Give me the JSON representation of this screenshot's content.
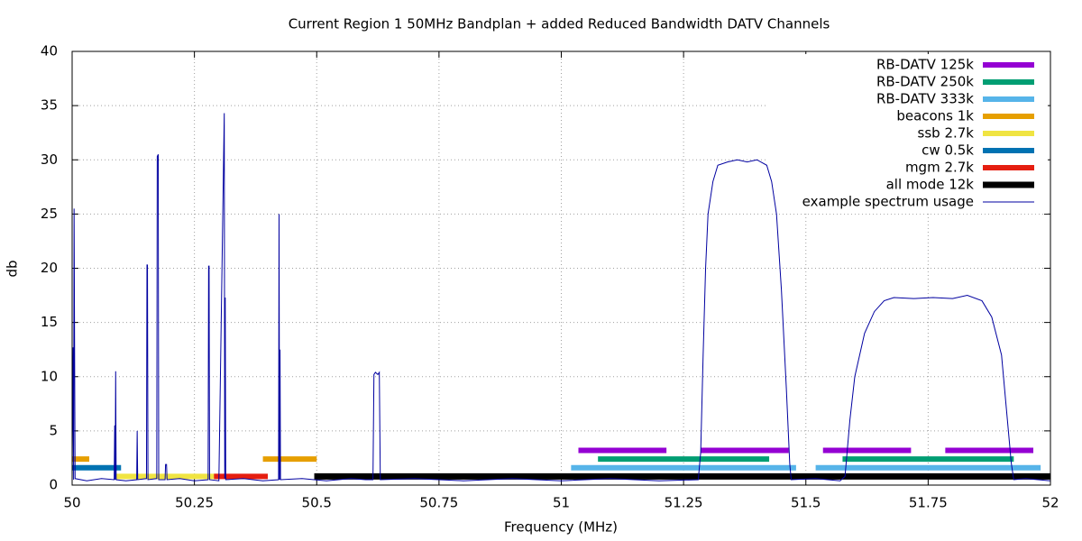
{
  "chart_data": {
    "type": "line",
    "title": "Current Region 1 50MHz Bandplan + added Reduced Bandwidth DATV Channels",
    "x_label": "Frequency (MHz)",
    "y_label": "db",
    "xlim": [
      50,
      52
    ],
    "ylim": [
      0,
      40
    ],
    "xticks": [
      50,
      50.25,
      50.5,
      50.75,
      51,
      51.25,
      51.5,
      51.75,
      52
    ],
    "yticks": [
      0,
      5,
      10,
      15,
      20,
      25,
      30,
      35,
      40
    ],
    "grid": true,
    "legend": "top-right",
    "series": [
      {
        "name": "RB-DATV 125k",
        "type": "segments",
        "color": "#9400d3",
        "y": 3.2,
        "segments": [
          [
            51.035,
            51.215
          ],
          [
            51.285,
            51.465
          ],
          [
            51.535,
            51.715
          ],
          [
            51.785,
            51.965
          ]
        ]
      },
      {
        "name": "RB-DATV 250k",
        "type": "segments",
        "color": "#009e73",
        "y": 2.4,
        "segments": [
          [
            51.075,
            51.425
          ],
          [
            51.575,
            51.925
          ]
        ]
      },
      {
        "name": "RB-DATV 333k",
        "type": "segments",
        "color": "#56b4e9",
        "y": 1.6,
        "segments": [
          [
            51.02,
            51.48
          ],
          [
            51.52,
            51.98
          ]
        ]
      },
      {
        "name": "beacons 1k",
        "type": "segments",
        "color": "#e69f00",
        "y": 2.4,
        "segments": [
          [
            50.0,
            50.035
          ],
          [
            50.39,
            50.5
          ]
        ]
      },
      {
        "name": "ssb 2.7k",
        "type": "segments",
        "color": "#f0e442",
        "y": 0.8,
        "segments": [
          [
            50.09,
            50.3
          ]
        ]
      },
      {
        "name": "cw 0.5k",
        "type": "segments",
        "color": "#0072b2",
        "y": 1.6,
        "segments": [
          [
            50.0,
            50.1
          ]
        ]
      },
      {
        "name": "mgm 2.7k",
        "type": "segments",
        "color": "#e51e10",
        "y": 0.8,
        "segments": [
          [
            50.29,
            50.4
          ]
        ]
      },
      {
        "name": "all mode 12k",
        "type": "segments",
        "color": "#000000",
        "y": 0.8,
        "segments": [
          [
            50.495,
            52.0
          ]
        ]
      },
      {
        "name": "example spectrum usage",
        "type": "line",
        "color": "#0000a0",
        "x": [
          50.0,
          50.002,
          50.003,
          50.004,
          50.006,
          50.03,
          50.06,
          50.086,
          50.087,
          50.088,
          50.089,
          50.09,
          50.11,
          50.132,
          50.133,
          50.134,
          50.152,
          50.153,
          50.154,
          50.155,
          50.173,
          50.174,
          50.176,
          50.177,
          50.19,
          50.191,
          50.193,
          50.194,
          50.22,
          50.25,
          50.278,
          50.279,
          50.28,
          50.281,
          50.3,
          50.311,
          50.312,
          50.313,
          50.314,
          50.35,
          50.39,
          50.422,
          50.423,
          50.424,
          50.425,
          50.426,
          50.47,
          50.52,
          50.57,
          50.6,
          50.615,
          50.617,
          50.62,
          50.625,
          50.628,
          50.63,
          50.7,
          50.8,
          50.9,
          51.0,
          51.1,
          51.2,
          51.28,
          51.285,
          51.29,
          51.295,
          51.3,
          51.31,
          51.32,
          51.34,
          51.36,
          51.38,
          51.4,
          51.42,
          51.43,
          51.44,
          51.45,
          51.46,
          51.467,
          51.47,
          51.52,
          51.57,
          51.58,
          51.59,
          51.6,
          51.62,
          51.64,
          51.66,
          51.68,
          51.72,
          51.76,
          51.8,
          51.83,
          51.86,
          51.88,
          51.9,
          51.91,
          51.92,
          51.925,
          51.95,
          52.0
        ],
        "values": [
          0.5,
          12.7,
          0.5,
          25.5,
          0.6,
          0.4,
          0.6,
          0.5,
          5.5,
          0.5,
          10.5,
          0.5,
          0.4,
          0.5,
          5,
          0.5,
          0.6,
          20.3,
          20.3,
          0.5,
          0.6,
          30.3,
          30.5,
          0.5,
          0.5,
          1.9,
          1.9,
          0.5,
          0.6,
          0.4,
          0.5,
          20.2,
          20.2,
          0.5,
          0.4,
          34.3,
          0.6,
          17.3,
          0.5,
          0.6,
          0.4,
          0.5,
          25,
          0.5,
          12.5,
          0.5,
          0.6,
          0.4,
          0.6,
          0.5,
          0.5,
          10.2,
          10.4,
          10.2,
          10.4,
          0.5,
          0.6,
          0.4,
          0.6,
          0.4,
          0.6,
          0.4,
          0.5,
          3,
          12,
          20,
          25,
          28,
          29.5,
          29.8,
          30,
          29.8,
          30,
          29.5,
          28,
          25,
          18,
          9,
          2,
          0.5,
          0.6,
          0.4,
          0.8,
          6,
          10,
          14,
          16,
          17,
          17.3,
          17.2,
          17.3,
          17.2,
          17.5,
          17,
          15.5,
          12,
          7,
          2,
          0.5,
          0.6,
          0.4
        ]
      }
    ]
  }
}
